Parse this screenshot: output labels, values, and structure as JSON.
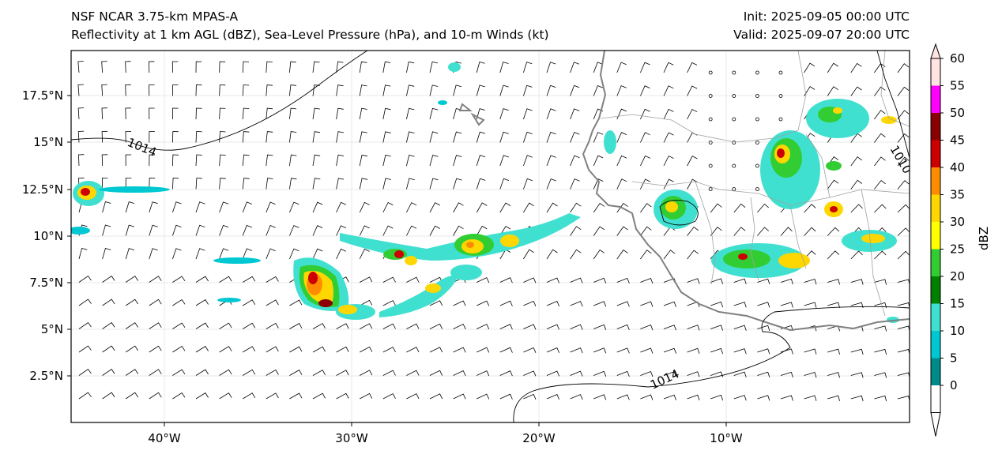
{
  "header": {
    "model": "NSF NCAR 3.75-km MPAS-A",
    "fields": "Reflectivity at 1 km AGL (dBZ), Sea-Level Pressure (hPa), and 10-m Winds (kt)",
    "init": "Init: 2025-09-05 00:00 UTC",
    "valid": "Valid: 2025-09-07 20:00 UTC"
  },
  "axes": {
    "lat_ticks": [
      "17.5°N",
      "15°N",
      "12.5°N",
      "10°N",
      "7.5°N",
      "5°N",
      "2.5°N"
    ],
    "lon_ticks": [
      "40°W",
      "30°W",
      "20°W",
      "10°W"
    ]
  },
  "isobars": {
    "labels": [
      "1014",
      "1014",
      "1010"
    ]
  },
  "colorbar": {
    "label": "dBZ",
    "ticks": [
      "0",
      "5",
      "10",
      "15",
      "20",
      "25",
      "30",
      "35",
      "40",
      "45",
      "50",
      "55",
      "60"
    ],
    "colors": [
      "#ffffff",
      "#008b8b",
      "#00c8d2",
      "#40e0d0",
      "#008000",
      "#32cd32",
      "#ffff00",
      "#ffd700",
      "#ff8c00",
      "#cc0000",
      "#8b0000",
      "#ff00ff",
      "#ffe4e1"
    ]
  }
}
